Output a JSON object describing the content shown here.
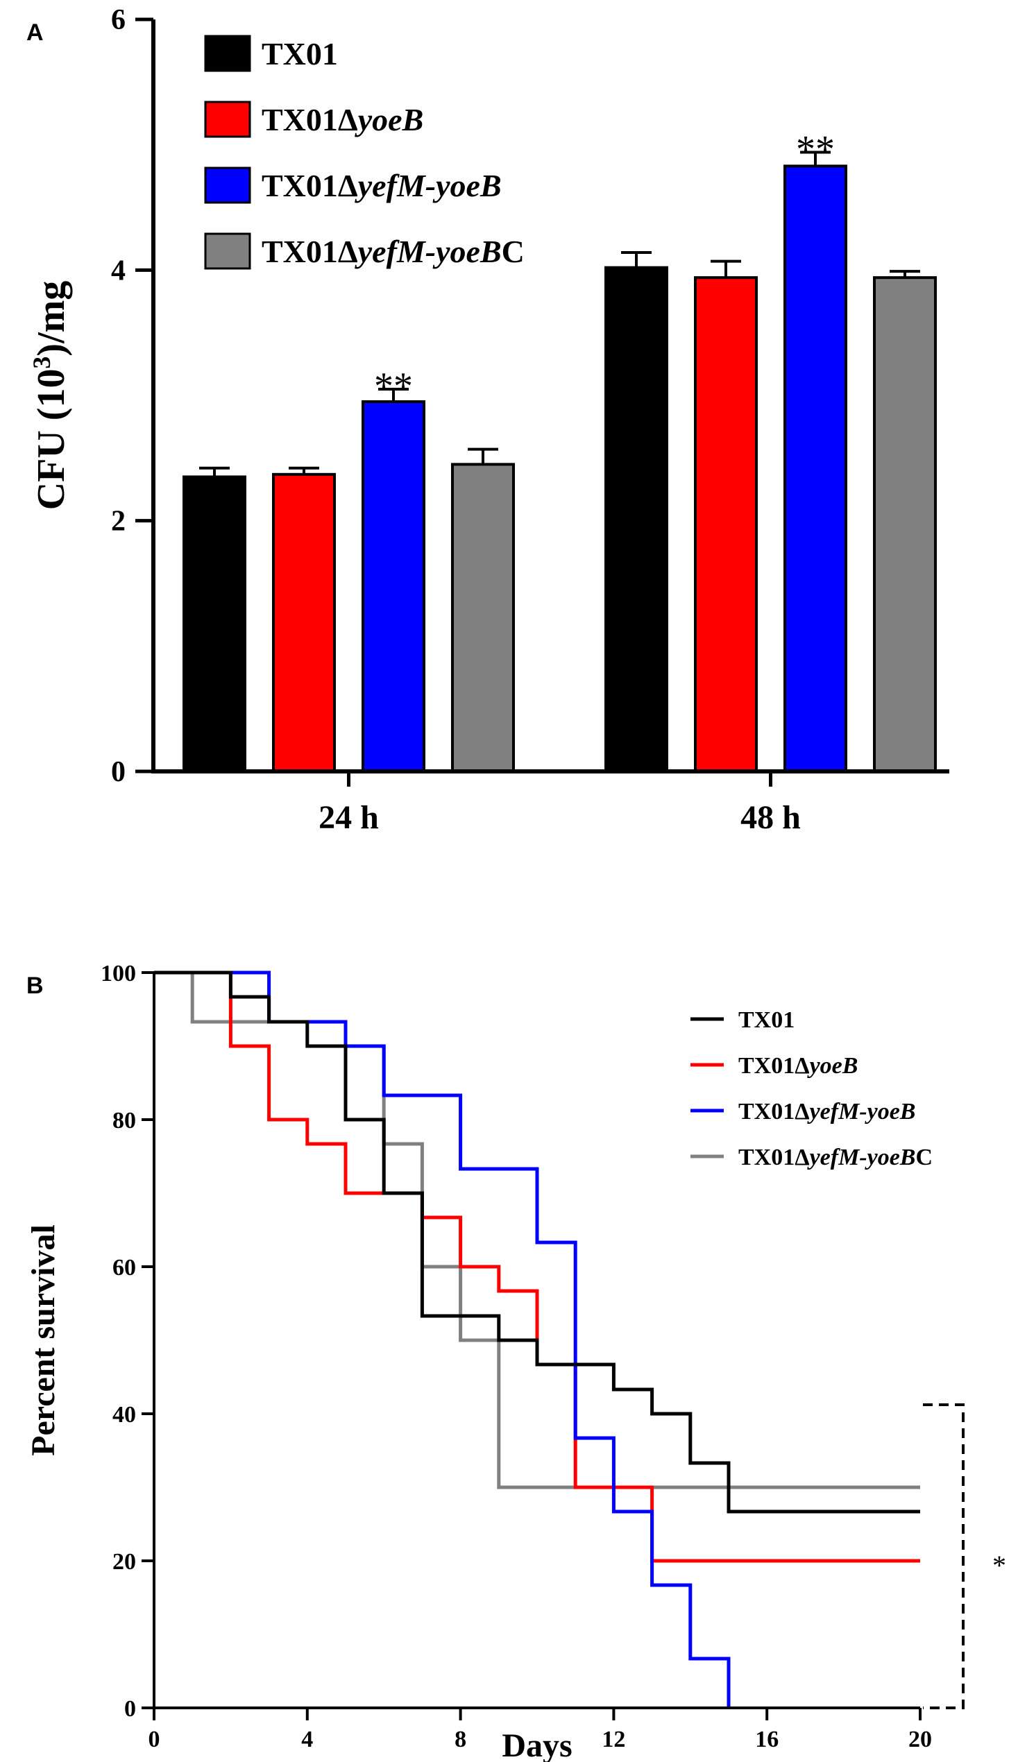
{
  "colors": {
    "TX01": "#000000",
    "yoeB": "#ff0000",
    "yefM_yoeB": "#0000ff",
    "complement": "#808080",
    "axis": "#000000",
    "background": "#ffffff"
  },
  "panels": {
    "a": {
      "label": "A"
    },
    "b": {
      "label": "B"
    }
  },
  "legend_items": [
    {
      "prefix": "TX01",
      "delta": "",
      "italic": "",
      "suffix": "",
      "color": "#000000"
    },
    {
      "prefix": "TX01",
      "delta": "Δ",
      "italic": "yoeB",
      "suffix": "",
      "color": "#ff0000"
    },
    {
      "prefix": "TX01",
      "delta": "Δ",
      "italic": "yefM-yoeB",
      "suffix": "",
      "color": "#0000ff"
    },
    {
      "prefix": "TX01",
      "delta": "Δ",
      "italic": "yefM-yoeB",
      "suffix": "C",
      "color": "#808080"
    }
  ],
  "chart_data": [
    {
      "panel": "A",
      "type": "bar",
      "title": "",
      "xlabel": "",
      "ylabel": "CFU (10³)/mg",
      "ylabel_parts": {
        "before": "CFU (10",
        "sup": "3",
        "after": ")/mg"
      },
      "ylim": [
        0,
        6
      ],
      "yticks": [
        "0",
        "2",
        "4",
        "6"
      ],
      "categories": [
        "24 h",
        "48 h"
      ],
      "series": [
        {
          "name": "TX01",
          "color": "#000000",
          "values": [
            2.35,
            4.02
          ],
          "errors": [
            0.07,
            0.12
          ]
        },
        {
          "name": "TX01ΔyoeB",
          "color": "#ff0000",
          "values": [
            2.37,
            3.94
          ],
          "errors": [
            0.05,
            0.13
          ]
        },
        {
          "name": "TX01ΔyefM-yoeB",
          "color": "#0000ff",
          "values": [
            2.95,
            4.83
          ],
          "errors": [
            0.1,
            0.11
          ]
        },
        {
          "name": "TX01ΔyefM-yoeBC",
          "color": "#808080",
          "values": [
            2.45,
            3.94
          ],
          "errors": [
            0.12,
            0.05
          ]
        }
      ],
      "annotations": [
        {
          "text": "**",
          "category": "24 h",
          "series": "TX01ΔyefM-yoeB"
        },
        {
          "text": "**",
          "category": "48 h",
          "series": "TX01ΔyefM-yoeB"
        }
      ],
      "legend_position": "top-left"
    },
    {
      "panel": "B",
      "type": "line",
      "style": "step",
      "title": "",
      "xlabel": "Days",
      "ylabel": "Percent survival",
      "xlim": [
        0,
        20
      ],
      "ylim": [
        0,
        100
      ],
      "xticks": [
        "0",
        "4",
        "8",
        "12",
        "16",
        "20"
      ],
      "yticks": [
        "0",
        "20",
        "40",
        "60",
        "80",
        "100"
      ],
      "series": [
        {
          "name": "TX01ΔyefM-yoeBC",
          "color": "#808080",
          "x": [
            0,
            1,
            3,
            5,
            6,
            7,
            8,
            9,
            20
          ],
          "y": [
            100,
            93.3,
            93.3,
            90,
            76.7,
            60,
            50,
            30,
            30
          ]
        },
        {
          "name": "TX01ΔyoeB",
          "color": "#ff0000",
          "x": [
            0,
            2,
            3,
            4,
            5,
            6,
            7,
            8,
            9,
            10,
            11,
            13,
            20
          ],
          "y": [
            100,
            90,
            80,
            76.7,
            70,
            70,
            66.7,
            60,
            56.7,
            46.7,
            30,
            20,
            20
          ]
        },
        {
          "name": "TX01ΔyefM-yoeB",
          "color": "#0000ff",
          "x": [
            0,
            3,
            5,
            6,
            8,
            10,
            11,
            12,
            13,
            14,
            15
          ],
          "y": [
            100,
            93.3,
            90,
            83.3,
            73.3,
            63.3,
            36.7,
            26.7,
            16.7,
            6.7,
            0
          ]
        },
        {
          "name": "TX01",
          "color": "#000000",
          "x": [
            0,
            2,
            3,
            4,
            5,
            6,
            7,
            9,
            10,
            12,
            13,
            14,
            15,
            20
          ],
          "y": [
            100,
            96.7,
            93.3,
            90,
            80,
            70,
            53.3,
            50,
            46.7,
            43.3,
            40,
            33.3,
            26.7,
            26.7
          ]
        }
      ],
      "annotations": [
        {
          "text": "*",
          "note": "bracket between TX01 and TX01ΔyefM-yoeB at end of study"
        }
      ],
      "legend_position": "right"
    }
  ]
}
